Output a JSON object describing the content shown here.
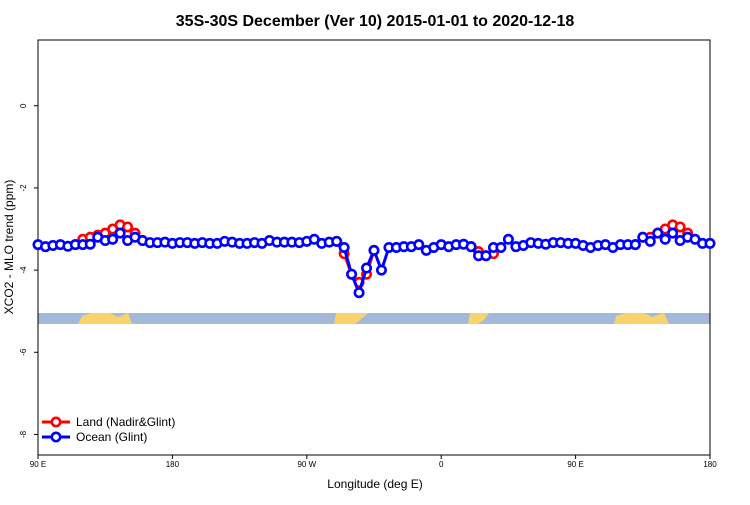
{
  "chart_data": {
    "type": "line",
    "title": "35S-30S December (Ver 10)   2015-01-01 to 2020-12-18",
    "xlabel": "Longitude (deg E)",
    "ylabel": "XCO2 - MLO trend (ppm)",
    "xlim": [
      90,
      540
    ],
    "ylim": [
      -8.5,
      1.6
    ],
    "xticks": [
      {
        "value": 90,
        "label": "90 E"
      },
      180,
      {
        "value": 270,
        "label": "90 W"
      },
      {
        "value": 360,
        "label": "0"
      },
      {
        "value": 450,
        "label": "90 E"
      },
      {
        "value": 540,
        "label": "180"
      }
    ],
    "yticks": [
      0,
      -2,
      -4,
      -6,
      -8
    ],
    "legend": "bottom-left",
    "x": [
      90,
      95,
      100,
      105,
      110,
      115,
      120,
      125,
      130,
      135,
      140,
      145,
      150,
      155,
      160,
      165,
      170,
      175,
      180,
      185,
      190,
      195,
      200,
      205,
      210,
      215,
      220,
      225,
      230,
      235,
      240,
      245,
      250,
      255,
      260,
      265,
      270,
      275,
      280,
      285,
      290,
      295,
      300,
      305,
      310,
      315,
      320,
      325,
      330,
      335,
      340,
      345,
      350,
      355,
      360,
      365,
      370,
      375,
      380,
      385,
      390,
      395,
      400,
      405,
      410,
      415,
      420,
      425,
      430,
      435,
      440,
      445,
      450,
      455,
      460,
      465,
      470,
      475,
      480,
      485,
      490,
      495,
      500,
      505,
      510,
      515,
      520,
      525,
      530,
      535,
      540
    ],
    "series": [
      {
        "name": "Land (Nadir&Glint)",
        "color": "#ff0000",
        "values": [
          null,
          null,
          null,
          null,
          null,
          -3.38,
          -3.25,
          -3.2,
          -3.15,
          -3.1,
          -3.0,
          -2.9,
          -2.95,
          -3.1,
          -3.28,
          null,
          null,
          null,
          null,
          null,
          null,
          null,
          null,
          null,
          null,
          null,
          null,
          null,
          null,
          null,
          null,
          null,
          null,
          null,
          null,
          null,
          null,
          null,
          null,
          null,
          -3.3,
          -3.6,
          -4.1,
          -4.3,
          -4.1,
          -3.52,
          null,
          null,
          null,
          null,
          null,
          null,
          null,
          null,
          null,
          null,
          null,
          null,
          -3.43,
          -3.55,
          -3.65,
          -3.6,
          null,
          null,
          null,
          null,
          null,
          null,
          null,
          null,
          null,
          null,
          null,
          null,
          null,
          null,
          null,
          null,
          null,
          null,
          -3.38,
          -3.2,
          -3.2,
          -3.1,
          -3.0,
          -2.9,
          -2.95,
          -3.1,
          null,
          null,
          null
        ]
      },
      {
        "name": "Ocean (Glint)",
        "color": "#0000ff",
        "values": [
          -3.38,
          -3.43,
          -3.4,
          -3.38,
          -3.42,
          -3.38,
          -3.38,
          -3.37,
          -3.2,
          -3.28,
          -3.25,
          -3.1,
          -3.28,
          -3.2,
          -3.28,
          -3.33,
          -3.33,
          -3.32,
          -3.35,
          -3.33,
          -3.33,
          -3.35,
          -3.33,
          -3.35,
          -3.35,
          -3.3,
          -3.32,
          -3.35,
          -3.35,
          -3.33,
          -3.35,
          -3.28,
          -3.32,
          -3.32,
          -3.32,
          -3.33,
          -3.3,
          -3.25,
          -3.35,
          -3.32,
          -3.3,
          -3.45,
          -4.1,
          -4.55,
          -3.95,
          -3.52,
          -4.0,
          -3.45,
          -3.45,
          -3.43,
          -3.43,
          -3.38,
          -3.52,
          -3.45,
          -3.38,
          -3.43,
          -3.38,
          -3.37,
          -3.43,
          -3.65,
          -3.65,
          -3.45,
          -3.45,
          -3.25,
          -3.43,
          -3.4,
          -3.33,
          -3.35,
          -3.37,
          -3.33,
          -3.33,
          -3.35,
          -3.35,
          -3.4,
          -3.45,
          -3.4,
          -3.38,
          -3.45,
          -3.38,
          -3.38,
          -3.38,
          -3.2,
          -3.3,
          -3.1,
          -3.25,
          -3.1,
          -3.28,
          -3.2,
          -3.25,
          -3.35,
          -3.35
        ]
      }
    ]
  }
}
